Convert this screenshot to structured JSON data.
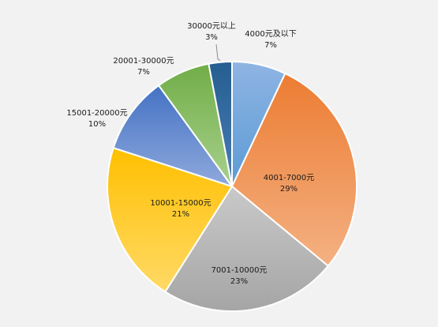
{
  "chart_data": {
    "type": "pie",
    "title": "",
    "slices": [
      {
        "label": "4000元及以下",
        "value": 7,
        "percent_label": "7%",
        "color_top": "#8fb4e3",
        "color_bottom": "#5b9bd5"
      },
      {
        "label": "4001-7000元",
        "value": 29,
        "percent_label": "29%",
        "color_top": "#ec7c32",
        "color_bottom": "#f4b183"
      },
      {
        "label": "7001-10000元",
        "value": 23,
        "percent_label": "23%",
        "color_top": "#c9c9c9",
        "color_bottom": "#a5a5a5"
      },
      {
        "label": "10001-15000元",
        "value": 21,
        "percent_label": "21%",
        "color_top": "#ffc000",
        "color_bottom": "#ffd966"
      },
      {
        "label": "15001-20000元",
        "value": 10,
        "percent_label": "10%",
        "color_top": "#4472c4",
        "color_bottom": "#8fa9dc"
      },
      {
        "label": "20001-30000元",
        "value": 7,
        "percent_label": "7%",
        "color_top": "#70ad47",
        "color_bottom": "#a9d18e"
      },
      {
        "label": "30000元以上",
        "value": 3,
        "percent_label": "3%",
        "color_top": "#255e91",
        "color_bottom": "#4a7db5"
      }
    ],
    "start_angle_deg": 0,
    "direction": "clockwise",
    "legend": "none"
  }
}
